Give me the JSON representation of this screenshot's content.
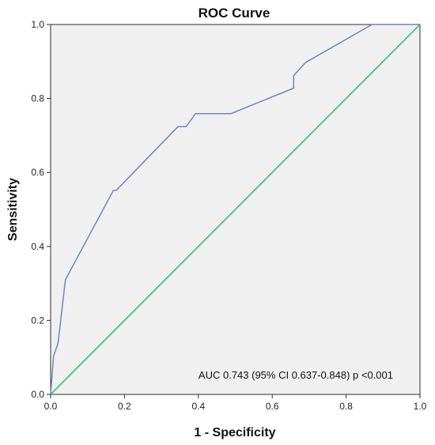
{
  "chart_data": {
    "type": "line",
    "title": "ROC Curve",
    "xlabel": "1 - Specificity",
    "ylabel": "Sensitivity",
    "xlim": [
      0,
      1
    ],
    "ylim": [
      0,
      1
    ],
    "x_ticks": [
      "0.0",
      "0.2",
      "0.4",
      "0.6",
      "0.8",
      "1.0"
    ],
    "y_ticks": [
      "0.0",
      "0.2",
      "0.4",
      "0.6",
      "0.8",
      "1.0"
    ],
    "grid": false,
    "annotation": "AUC 0.743 (95% CI 0.637-0.848) p <0.001",
    "series": [
      {
        "color": "#6d86be",
        "x": [
          0.0,
          0.008,
          0.008,
          0.02,
          0.024,
          0.024,
          0.04,
          0.17,
          0.178,
          0.345,
          0.367,
          0.392,
          0.488,
          0.658,
          0.658,
          0.69,
          0.87,
          1.0
        ],
        "y": [
          0.0,
          0.103,
          0.103,
          0.138,
          0.172,
          0.172,
          0.31,
          0.552,
          0.552,
          0.724,
          0.724,
          0.759,
          0.759,
          0.828,
          0.862,
          0.897,
          1.0,
          1.0
        ]
      },
      {
        "color": "#22c35a",
        "x": [
          0,
          1
        ],
        "y": [
          0,
          1
        ]
      }
    ]
  }
}
